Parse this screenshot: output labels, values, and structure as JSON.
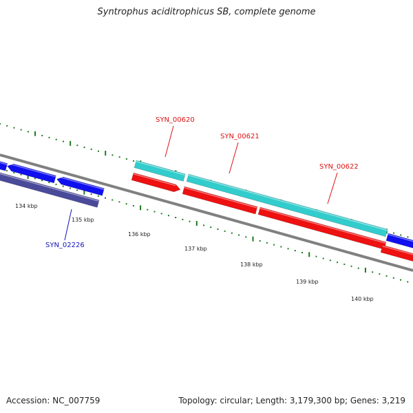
{
  "title": "Syntrophus aciditrophicus SB, complete genome",
  "accession": "Accession: NC_007759",
  "summary": "Topology: circular; Length: 3,179,300 bp; Genes: 3,219",
  "colors": {
    "backbone": "#808080",
    "tick": "#1a7a1a",
    "gene_blue": "#1010ee",
    "gene_cyan": "#33cccc",
    "gene_red": "#ee1111",
    "gene_slate": "#4a4a9a",
    "label_red": "#dd1111",
    "label_blue": "#1111bb"
  },
  "ruler": {
    "unit": "kbp",
    "tick_labels": [
      "134 kbp",
      "135 kbp",
      "136 kbp",
      "137 kbp",
      "138 kbp",
      "139 kbp",
      "140 kbp"
    ]
  },
  "gene_labels": [
    {
      "name": "SYN_00620",
      "strand": "forward",
      "color": "red"
    },
    {
      "name": "SYN_00621",
      "strand": "forward",
      "color": "red"
    },
    {
      "name": "SYN_00622",
      "strand": "forward",
      "color": "red"
    },
    {
      "name": "SYN_02226",
      "strand": "reverse",
      "color": "blue"
    }
  ]
}
